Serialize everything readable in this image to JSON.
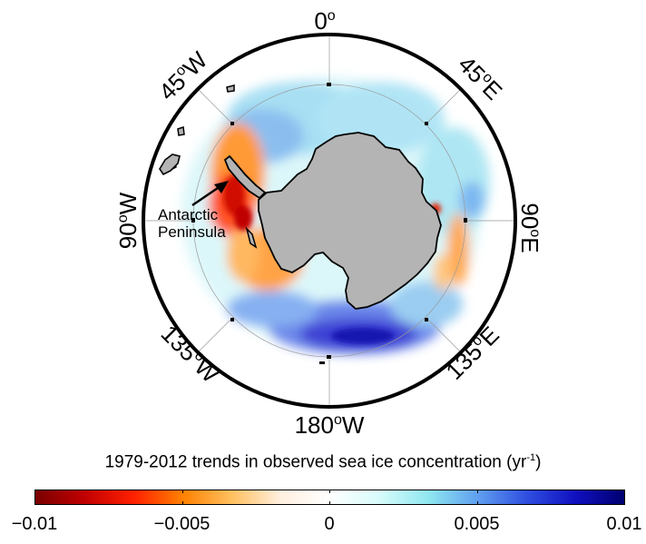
{
  "map": {
    "longitude_labels": {
      "north": "0",
      "ne": "45",
      "east": "90",
      "se": "135",
      "south": "180",
      "sw": "135",
      "west": "90",
      "nw": "45"
    },
    "suffix_west": "W",
    "suffix_east": "E",
    "degree_symbol": "o",
    "annotation": [
      "Antarctic",
      "Peninsula"
    ]
  },
  "colorbar": {
    "title": "1979-2012 trends in observed sea ice concentration (yr",
    "title_sup": "-1",
    "title_end": ")",
    "min": -0.01,
    "max": 0.01,
    "ticks": [
      "−0.01",
      "−0.005",
      "0",
      "0.005",
      "0.01"
    ],
    "stops": [
      "#7a0000",
      "#c00000",
      "#ff2000",
      "#ff8000",
      "#ffc060",
      "#fff0e0",
      "#ffffff",
      "#d8fbfb",
      "#90e8f0",
      "#60a0f0",
      "#3050e0",
      "#1010c0",
      "#000070"
    ]
  },
  "colors": {
    "land": "#b4b4b4",
    "ocean": "#ffffff",
    "border": "#000000"
  }
}
